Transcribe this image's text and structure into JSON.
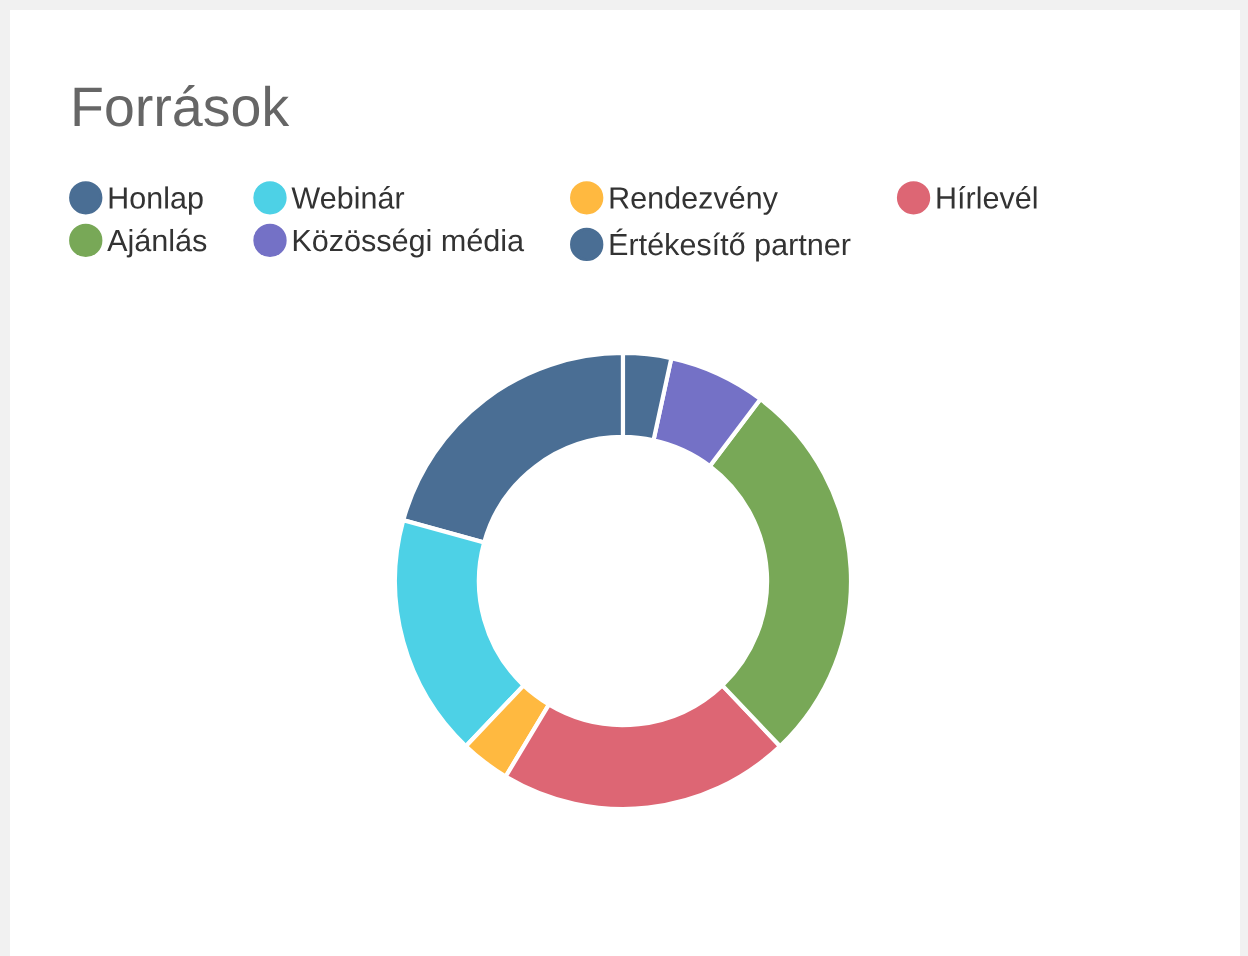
{
  "chart_data": {
    "type": "donut",
    "title": "Források",
    "categories": [
      "Honlap",
      "Webinár",
      "Rendezvény",
      "Hírlevél",
      "Ajánlás",
      "Közösségi média",
      "Értékesítő partner"
    ],
    "values": [
      20.7,
      17.2,
      3.5,
      20.7,
      27.6,
      6.9,
      3.4
    ],
    "colors": [
      "#4a6e94",
      "#4dd1e6",
      "#ffb940",
      "#dd6674",
      "#78a857",
      "#7471c6",
      "#4a6e94"
    ],
    "legend": "top"
  }
}
